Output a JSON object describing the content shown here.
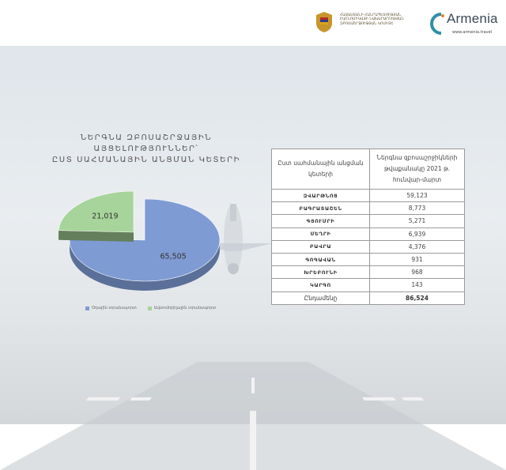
{
  "header": {
    "ministry_lines": [
      "ՀԱՅԱՍՏԱՆԻ ՀԱՆՐԱՊԵՏՈՒԹՅԱՆ",
      "ԷԿՈՆՈՄԻԿԱՅԻ ՆԱԽԱՐԱՐՈՒԹՅԱՆ",
      "ԶԲՈՍԱՇՐՋՈՒԹՅԱՆ ԿՈՄԻՏԵ"
    ],
    "brand_logo": "Armenia",
    "brand_url": "www.armenia.travel"
  },
  "title_lines": [
    "ՆԵՐԳՆԱ ԶԲՈՍԱՇՐՋԱՅԻՆ ԱՅՑԵԼՈՒԹՅՈՒՆՆԵՐ՝",
    "ԸՍՏ ՍԱՀՄԱՆԱՅԻՆ ԱՆՑՄԱՆ ԿԵՏԵՐԻ"
  ],
  "chart_data": {
    "type": "pie",
    "style": "3d-exploded",
    "slices": [
      {
        "label": "Օդային տրանսպորտ",
        "value": 65505,
        "display": "65,505",
        "color": "#7f9bd3"
      },
      {
        "label": "Ավտոմոբիլային տրանսպորտ",
        "value": 21019,
        "display": "21,019",
        "color": "#a6d49a"
      }
    ],
    "legend_position": "bottom"
  },
  "table": {
    "headers": [
      "Ըստ սահմանային անցման կետերի",
      "Ներգնա զբոսաշրջիկների թվաքանակը 2021 թ. հունվար-մարտ"
    ],
    "rows": [
      {
        "place": "ԶՎԱՐԹՆՈՑ",
        "value": "59,123"
      },
      {
        "place": "ԲԱԳՐԱՏԱՇԵՆ",
        "value": "8,773"
      },
      {
        "place": "ԳՅՈՒՄՐԻ",
        "value": "5,271"
      },
      {
        "place": "ՄԵՂՐԻ",
        "value": "6,939"
      },
      {
        "place": "ԲԱՎՐԱ",
        "value": "4,376"
      },
      {
        "place": "ԳՈԳԱՎԱՆ",
        "value": "931"
      },
      {
        "place": "ԽՐԵԲՈՒՆԻ",
        "value": "968"
      },
      {
        "place": "ԿԱՐԳՈ",
        "value": "143"
      }
    ],
    "total": {
      "label": "Ընդամենը",
      "value": "86,524"
    }
  }
}
